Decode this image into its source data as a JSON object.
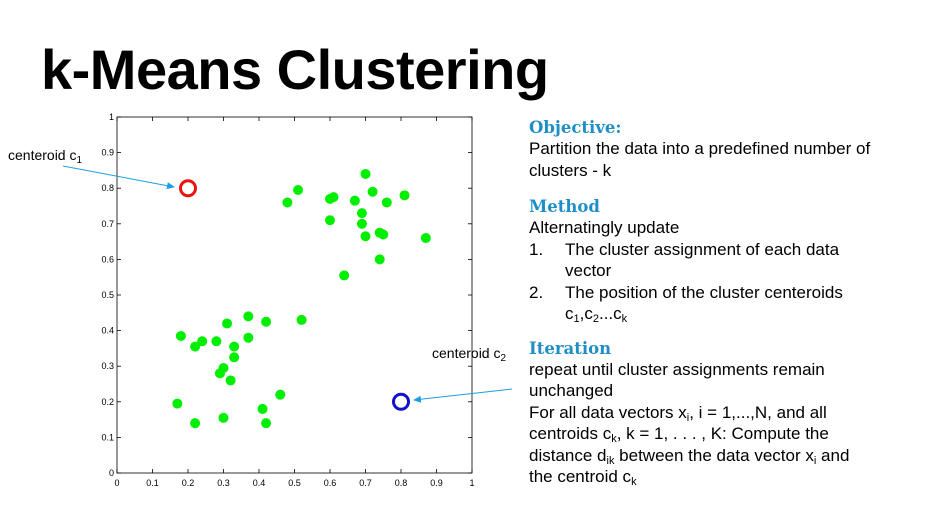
{
  "title": "k-Means Clustering",
  "colors": {
    "points": "#00ee00",
    "centroid1": "#ee1111",
    "centroid2": "#1111cc",
    "arrow": "#1aa0e0",
    "heading": "#1f8ec7"
  },
  "callouts": {
    "c1": {
      "prefix": "centeroid c",
      "sub": "1"
    },
    "c2": {
      "prefix": "centeroid c",
      "sub": "2"
    }
  },
  "chart_data": {
    "type": "scatter",
    "xlim": [
      0,
      1
    ],
    "ylim": [
      0,
      1
    ],
    "xticks": [
      "0",
      "0.1",
      "0.2",
      "0.3",
      "0.4",
      "0.5",
      "0.6",
      "0.7",
      "0.8",
      "0.9",
      "1"
    ],
    "yticks": [
      "0",
      "0.1",
      "0.2",
      "0.3",
      "0.4",
      "0.5",
      "0.6",
      "0.7",
      "0.8",
      "0.9",
      "1"
    ],
    "grid": false,
    "points": [
      [
        0.18,
        0.385
      ],
      [
        0.24,
        0.37
      ],
      [
        0.22,
        0.355
      ],
      [
        0.28,
        0.37
      ],
      [
        0.31,
        0.42
      ],
      [
        0.37,
        0.44
      ],
      [
        0.42,
        0.425
      ],
      [
        0.52,
        0.43
      ],
      [
        0.37,
        0.38
      ],
      [
        0.33,
        0.355
      ],
      [
        0.33,
        0.325
      ],
      [
        0.29,
        0.28
      ],
      [
        0.3,
        0.295
      ],
      [
        0.32,
        0.26
      ],
      [
        0.46,
        0.22
      ],
      [
        0.41,
        0.18
      ],
      [
        0.42,
        0.14
      ],
      [
        0.3,
        0.155
      ],
      [
        0.22,
        0.14
      ],
      [
        0.17,
        0.195
      ],
      [
        0.7,
        0.84
      ],
      [
        0.51,
        0.795
      ],
      [
        0.48,
        0.76
      ],
      [
        0.61,
        0.775
      ],
      [
        0.6,
        0.77
      ],
      [
        0.67,
        0.765
      ],
      [
        0.72,
        0.79
      ],
      [
        0.76,
        0.76
      ],
      [
        0.81,
        0.78
      ],
      [
        0.69,
        0.73
      ],
      [
        0.6,
        0.71
      ],
      [
        0.69,
        0.7
      ],
      [
        0.74,
        0.675
      ],
      [
        0.75,
        0.67
      ],
      [
        0.7,
        0.665
      ],
      [
        0.87,
        0.66
      ],
      [
        0.74,
        0.6
      ],
      [
        0.64,
        0.555
      ]
    ],
    "centroids": [
      {
        "x": 0.2,
        "y": 0.8
      },
      {
        "x": 0.8,
        "y": 0.2
      }
    ]
  },
  "objective": {
    "heading": "Objective:",
    "text": "Partition the data into a predefined number of clusters - k"
  },
  "method": {
    "heading": "Method",
    "intro": "Alternatingly update",
    "item1_num": "1.",
    "item1_text": "The cluster assignment of each data vector",
    "item2_num": "2.",
    "item2_text": "The position of the cluster centeroids",
    "c1": "c",
    "c1_sub": "1",
    "comma1": ",c",
    "c2_sub": "2",
    "dots": "...c",
    "ck_sub": "k"
  },
  "iteration": {
    "heading": "Iteration",
    "line1": "repeat until cluster assignments remain unchanged",
    "l2a": "For all data vectors x",
    "l2_sub_i": "i",
    "l2b": ", i = 1,...,N, and all",
    "l3a": "centroids c",
    "l3_sub_k": "k",
    "l3b": ", k = 1, . . . , K: Compute the",
    "l4a": "distance d",
    "l4_sub_ik": "ik",
    "l4b": " between the data vector x",
    "l4_sub_i": "i",
    "l4c": " and",
    "l5a": "the centroid c",
    "l5_sub_k": "k"
  }
}
